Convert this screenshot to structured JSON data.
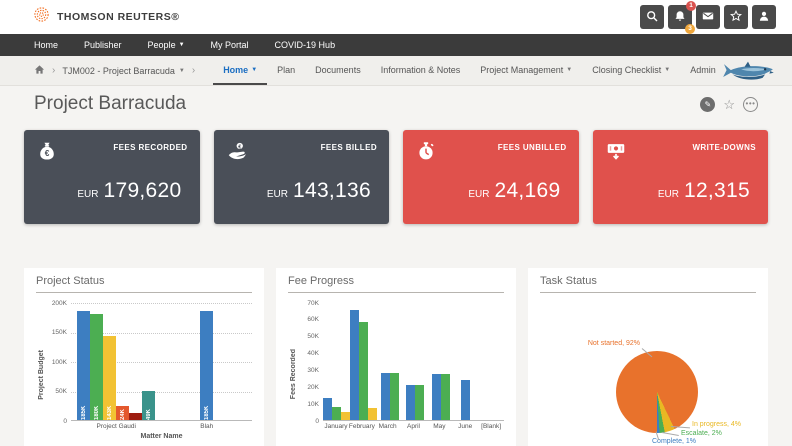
{
  "top_bar": {
    "brand": "THOMSON REUTERS®",
    "alert_badge": "1",
    "task_badge": "3"
  },
  "main_nav": {
    "items": [
      {
        "label": "Home",
        "caret": false
      },
      {
        "label": "Publisher",
        "caret": false
      },
      {
        "label": "People",
        "caret": true
      },
      {
        "label": "My Portal",
        "caret": false
      },
      {
        "label": "COVID-19 Hub",
        "caret": false
      }
    ]
  },
  "context_bar": {
    "matter_selector": "TJM002 - Project Barracuda",
    "tabs": [
      {
        "label": "Home",
        "caret": true,
        "active": true
      },
      {
        "label": "Plan",
        "caret": false,
        "active": false
      },
      {
        "label": "Documents",
        "caret": false,
        "active": false
      },
      {
        "label": "Information & Notes",
        "caret": false,
        "active": false
      },
      {
        "label": "Project Management",
        "caret": true,
        "active": false
      },
      {
        "label": "Closing Checklist",
        "caret": true,
        "active": false
      },
      {
        "label": "Admin",
        "caret": false,
        "active": false
      }
    ]
  },
  "page": {
    "title": "Project Barracuda"
  },
  "kpis": [
    {
      "label": "FEES RECORDED",
      "currency": "EUR",
      "value": "179,620",
      "icon": "money-bag-euro-icon",
      "color": "#4a4f58"
    },
    {
      "label": "FEES BILLED",
      "currency": "EUR",
      "value": "143,136",
      "icon": "hand-coin-icon",
      "color": "#4a4f58"
    },
    {
      "label": "FEES UNBILLED",
      "currency": "EUR",
      "value": "24,169",
      "icon": "stopwatch-icon",
      "color": "#e0514c"
    },
    {
      "label": "WRITE-DOWNS",
      "currency": "EUR",
      "value": "12,315",
      "icon": "banknote-down-icon",
      "color": "#e0514c"
    }
  ],
  "chart_data": [
    {
      "id": "project_status",
      "type": "bar",
      "title": "Project Status",
      "xlabel": "Matter Name",
      "ylabel": "Project Budget",
      "ylim": [
        0,
        200000
      ],
      "yticks": [
        0,
        50000,
        100000,
        150000,
        200000
      ],
      "ytick_labels": [
        "0",
        "50K",
        "100K",
        "150K",
        "200K"
      ],
      "grid": "dotted",
      "legend": false,
      "categories": [
        "Project Gaudi",
        "Blah"
      ],
      "series": [
        {
          "name": "budget-blue",
          "color": "#3d7ec1",
          "values": [
            185000,
            185000
          ],
          "bar_labels": [
            "185K",
            "185K"
          ]
        },
        {
          "name": "budget-green",
          "color": "#4cae52",
          "values": [
            180000,
            null
          ],
          "bar_labels": [
            "180K",
            null
          ]
        },
        {
          "name": "budget-yellow",
          "color": "#f2c233",
          "values": [
            143000,
            null
          ],
          "bar_labels": [
            "143K",
            null
          ]
        },
        {
          "name": "budget-orange",
          "color": "#e4582d",
          "values": [
            24000,
            null
          ],
          "bar_labels": [
            "24K",
            null
          ]
        },
        {
          "name": "budget-darkred",
          "color": "#9e1c10",
          "values": [
            12000,
            null
          ],
          "bar_labels": [
            null,
            null
          ]
        },
        {
          "name": "budget-teal",
          "color": "#3a938b",
          "values": [
            49000,
            null
          ],
          "bar_labels": [
            "49K",
            null
          ]
        }
      ]
    },
    {
      "id": "fee_progress",
      "type": "bar",
      "title": "Fee Progress",
      "xlabel": "",
      "ylabel": "Fees Recorded",
      "ylim": [
        0,
        70000
      ],
      "yticks": [
        0,
        10000,
        20000,
        30000,
        40000,
        50000,
        60000,
        70000
      ],
      "ytick_labels": [
        "0",
        "10K",
        "20K",
        "30K",
        "40K",
        "50K",
        "60K",
        "70K"
      ],
      "grid": "none",
      "legend": false,
      "categories": [
        "January",
        "February",
        "March",
        "April",
        "May",
        "June",
        "[Blank]"
      ],
      "series": [
        {
          "name": "fees-blue",
          "color": "#3d7ec1",
          "values": [
            13000,
            65000,
            28000,
            21000,
            27000,
            24000,
            null
          ]
        },
        {
          "name": "fees-green",
          "color": "#4cae52",
          "values": [
            8000,
            58000,
            28000,
            21000,
            27000,
            null,
            null
          ]
        },
        {
          "name": "fees-yellow",
          "color": "#f2c233",
          "values": [
            5000,
            7000,
            null,
            null,
            null,
            null,
            null
          ]
        }
      ]
    },
    {
      "id": "task_status",
      "type": "pie",
      "title": "Task Status",
      "slices": [
        {
          "label": "Not started",
          "pct": 92,
          "color": "#e8722c"
        },
        {
          "label": "In progress",
          "pct": 4,
          "color": "#e9b823"
        },
        {
          "label": "Escalate",
          "pct": 2,
          "color": "#4cae52"
        },
        {
          "label": "Complete",
          "pct": 1,
          "color": "#3d7ec1"
        }
      ],
      "label_format": "{label}, {pct}%"
    }
  ],
  "colors": {
    "nav_bg": "#3b3b3b",
    "kpi_dark": "#4a4f58",
    "kpi_red": "#e0514c",
    "active_tab_blue": "#1b6ec2",
    "badge_red": "#d9534f",
    "badge_orange": "#f0a73c",
    "brand_orange": "#f26e21"
  }
}
